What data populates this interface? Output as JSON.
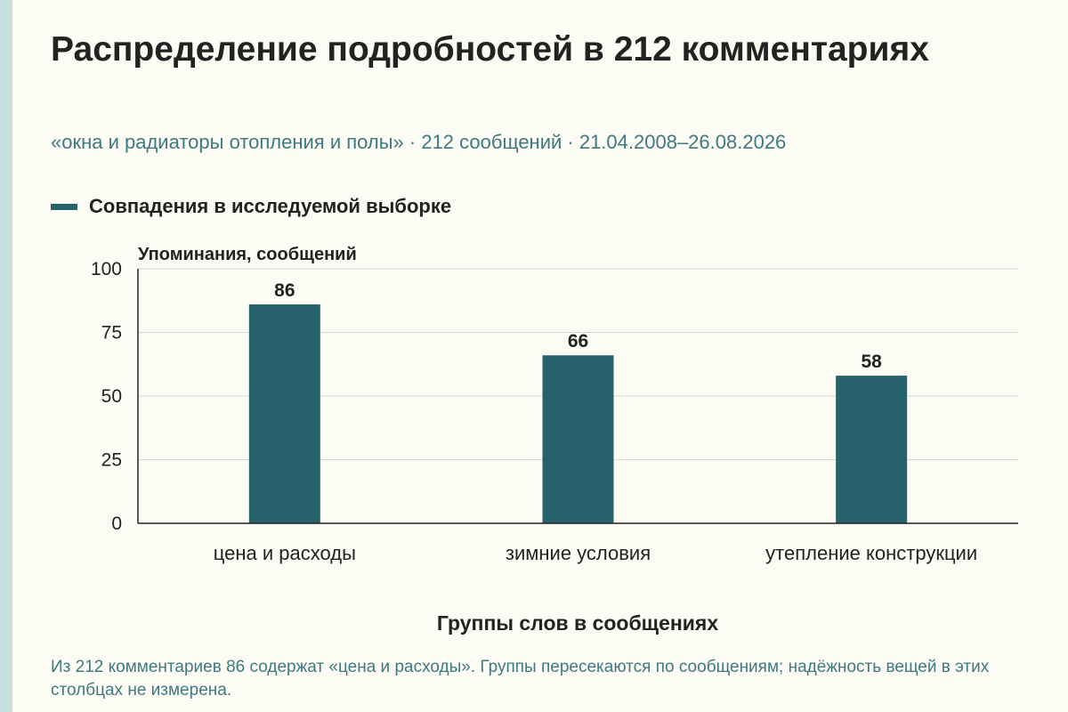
{
  "colors": {
    "accent": "#26616c",
    "subtitle": "#3f7a82",
    "stripe": "#c5dfdf",
    "grid": "#d9d9d3",
    "axis": "#222222",
    "note": "#3f7a82"
  },
  "header": {
    "title": "Распределение подробностей в 212 комментариях",
    "subtitle": "«окна и радиаторы отопления и полы» · 212 сообщений · 21.04.2008–26.08.2026"
  },
  "legend": {
    "label": "Совпадения в исследуемой выборке"
  },
  "chart_data": {
    "type": "bar",
    "title": "Распределение подробностей в 212 комментариях",
    "subtitle": "«окна и радиаторы отопления и полы» · 212 сообщений · 21.04.2008–26.08.2026",
    "xlabel": "Группы слов в сообщениях",
    "ylabel": "Упоминания, сообщений",
    "categories": [
      "цена и расходы",
      "зимние условия",
      "утепление конструкции"
    ],
    "series": [
      {
        "name": "Совпадения в исследуемой выборке",
        "values": [
          86,
          66,
          58
        ]
      }
    ],
    "ylim": [
      0,
      100
    ],
    "yticks": [
      0,
      25,
      50,
      75,
      100
    ],
    "grid": true,
    "legend_position": "top-left"
  },
  "note": "Из 212 комментариев 86 содержат «цена и расходы». Группы пересекаются по сообщениям; надёжность вещей в этих столбцах не измерена."
}
